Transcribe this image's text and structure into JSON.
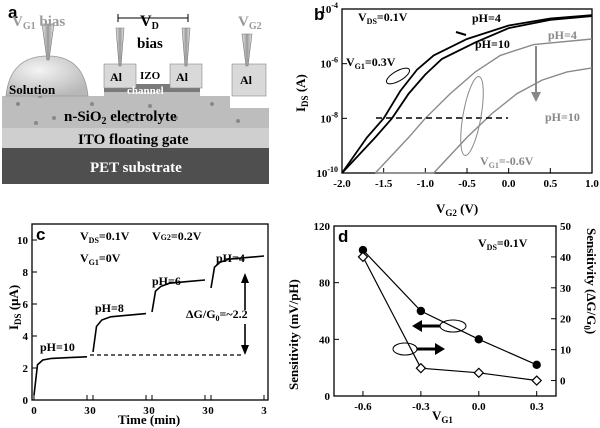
{
  "panels": {
    "a": {
      "letter": "a",
      "vg1": "V",
      "vg1_sub": "G1",
      "vg1_rest": " bias",
      "vd": "V",
      "vd_sub": "D",
      "vd_rest": "bias",
      "vg2": "V",
      "vg2_sub": "G2",
      "solution": "Solution",
      "al": "Al",
      "izo": "IZO",
      "channel": "channel",
      "electrolyte": "n-SiO",
      "electrolyte_sub": "2",
      "electrolyte_rest": " electrolyte",
      "ito": "ITO floating gate",
      "pet": "PET substrate"
    },
    "b": {
      "letter": "b",
      "vds_note": "V",
      "vds_note_sub": "DS",
      "vds_note_rest": "=0.1V",
      "ph4_black": "pH=4",
      "ph10_black": "pH=10",
      "vg1_black": "V",
      "vg1_black_sub": "G1",
      "vg1_black_rest": "=0.3V",
      "ph4_gray": "pH=4",
      "ph10_gray": "pH=10",
      "vg1_gray": "V",
      "vg1_gray_sub": "G1",
      "vg1_gray_rest": "=-0.6V",
      "ylabel": "I",
      "ylabel_sub": "DS",
      "ylabel_rest": " (A)",
      "xlabel": "V",
      "xlabel_sub": "G2",
      "xlabel_rest": " (V)",
      "xticks": [
        "-2.0",
        "-1.5",
        "-1.0",
        "-0.5",
        "0.0",
        "0.5",
        "1.0"
      ],
      "yticks": [
        {
          "b": "10",
          "e": "-10"
        },
        {
          "b": "10",
          "e": "-8"
        },
        {
          "b": "10",
          "e": "-6"
        },
        {
          "b": "10",
          "e": "-4"
        }
      ]
    },
    "c": {
      "letter": "c",
      "vds": "V",
      "vds_sub": "DS",
      "vds_rest": "=0.1V",
      "vg2": "V",
      "vg2_sub": "G2",
      "vg2_rest": "=0.2V",
      "vg1": "V",
      "vg1_sub": "G1",
      "vg1_rest": "=0V",
      "ph10": "pH=10",
      "ph8": "pH=8",
      "ph6": "pH=6",
      "ph4": "pH=4",
      "ratio": "ΔG/G",
      "ratio_sub": "0",
      "ratio_rest": "=~2.2",
      "ylabel": "I",
      "ylabel_sub": "DS",
      "ylabel_rest": " (μA)",
      "xlabel": "Time (min)",
      "yticks": [
        "0",
        "2",
        "4",
        "6",
        "8",
        "10"
      ],
      "xticks": [
        "0",
        "3",
        "0",
        "3",
        "0",
        "3",
        "0",
        "3"
      ]
    },
    "d": {
      "letter": "d",
      "vds": "V",
      "vds_sub": "DS",
      "vds_rest": "=0.1V",
      "ylabel": "Sensitivity (mV/pH)",
      "y2label": "Sensitivity (ΔG/G",
      "y2label_sub": "0",
      "y2label_rest": ")",
      "xlabel": "V",
      "xlabel_sub": "G1",
      "xticks": [
        "-0.6",
        "-0.3",
        "0.0",
        "0.3"
      ],
      "yticks": [
        "0",
        "40",
        "80",
        "120"
      ],
      "y2ticks": [
        "0",
        "10",
        "20",
        "30",
        "40",
        "50"
      ]
    }
  },
  "chart_data": [
    {
      "type": "line",
      "panel": "b",
      "xlabel": "V_G2 (V)",
      "ylabel": "I_DS (A)",
      "xlim": [
        -2.0,
        1.0
      ],
      "ylim": [
        1e-10,
        0.0001
      ],
      "yscale": "log",
      "series": [
        {
          "name": "V_G1=0.3V, pH=4",
          "x": [
            -2.0,
            -1.7,
            -1.5,
            -1.3,
            -1.1,
            -0.9,
            -0.5,
            0.0,
            0.5,
            1.0
          ],
          "y": [
            1e-10,
            2e-09,
            1e-08,
            1e-07,
            6e-07,
            2e-06,
            8e-06,
            2.5e-05,
            4.5e-05,
            6e-05
          ]
        },
        {
          "name": "V_G1=0.3V, pH=10",
          "x": [
            -2.0,
            -1.6,
            -1.4,
            -1.2,
            -1.0,
            -0.8,
            -0.4,
            0.0,
            0.5,
            1.0
          ],
          "y": [
            1e-10,
            2e-09,
            1e-08,
            8e-08,
            4e-07,
            1.5e-06,
            6e-06,
            2e-05,
            4e-05,
            5.5e-05
          ]
        },
        {
          "name": "V_G1=-0.6V, pH=4",
          "x": [
            -1.6,
            -1.2,
            -1.0,
            -0.7,
            -0.4,
            -0.1,
            0.3,
            1.0
          ],
          "y": [
            1e-10,
            2e-09,
            1e-08,
            8e-08,
            5e-07,
            2e-06,
            5e-06,
            8e-06
          ]
        },
        {
          "name": "V_G1=-0.6V, pH=10",
          "x": [
            -1.6,
            -0.9,
            -0.5,
            -0.2,
            0.1,
            0.4,
            0.7,
            1.0
          ],
          "y": [
            1e-10,
            1e-10,
            2e-09,
            1.5e-08,
            8e-08,
            2.5e-07,
            5e-07,
            7e-07
          ]
        }
      ]
    },
    {
      "type": "line",
      "panel": "c",
      "xlabel": "Time (min)",
      "ylabel": "I_DS (μA)",
      "ylim": [
        0,
        11
      ],
      "series": [
        {
          "name": "pH=10",
          "x": [
            0,
            0.2,
            0.5,
            1,
            2,
            3
          ],
          "y": [
            0.3,
            2.2,
            2.5,
            2.6,
            2.65,
            2.7
          ]
        },
        {
          "name": "pH=8",
          "x": [
            0,
            0.2,
            0.5,
            1,
            2,
            3
          ],
          "y": [
            3.0,
            4.6,
            5.0,
            5.2,
            5.3,
            5.4
          ]
        },
        {
          "name": "pH=6",
          "x": [
            0,
            0.2,
            0.5,
            1,
            2,
            3
          ],
          "y": [
            5.5,
            6.8,
            7.1,
            7.3,
            7.4,
            7.5
          ]
        },
        {
          "name": "pH=4",
          "x": [
            0,
            0.2,
            0.5,
            1,
            2,
            3
          ],
          "y": [
            7.0,
            8.3,
            8.6,
            8.8,
            8.9,
            9.0
          ]
        }
      ]
    },
    {
      "type": "line",
      "panel": "d",
      "xlabel": "V_G1",
      "ylabel": "Sensitivity (mV/pH)",
      "y2label": "Sensitivity (ΔG/G_0)",
      "xlim": [
        -0.75,
        0.4
      ],
      "ylim": [
        0,
        120
      ],
      "y2lim": [
        -5,
        50
      ],
      "series": [
        {
          "name": "Sensitivity (mV/pH)",
          "axis": "left",
          "marker": "filled-circle",
          "x": [
            -0.6,
            -0.3,
            0.0,
            0.3
          ],
          "y": [
            103,
            60,
            40,
            22
          ]
        },
        {
          "name": "Sensitivity (ΔG/G0)",
          "axis": "right",
          "marker": "open-diamond",
          "x": [
            -0.6,
            -0.3,
            0.0,
            0.3
          ],
          "y": [
            40,
            4,
            2.5,
            0
          ]
        }
      ]
    }
  ]
}
